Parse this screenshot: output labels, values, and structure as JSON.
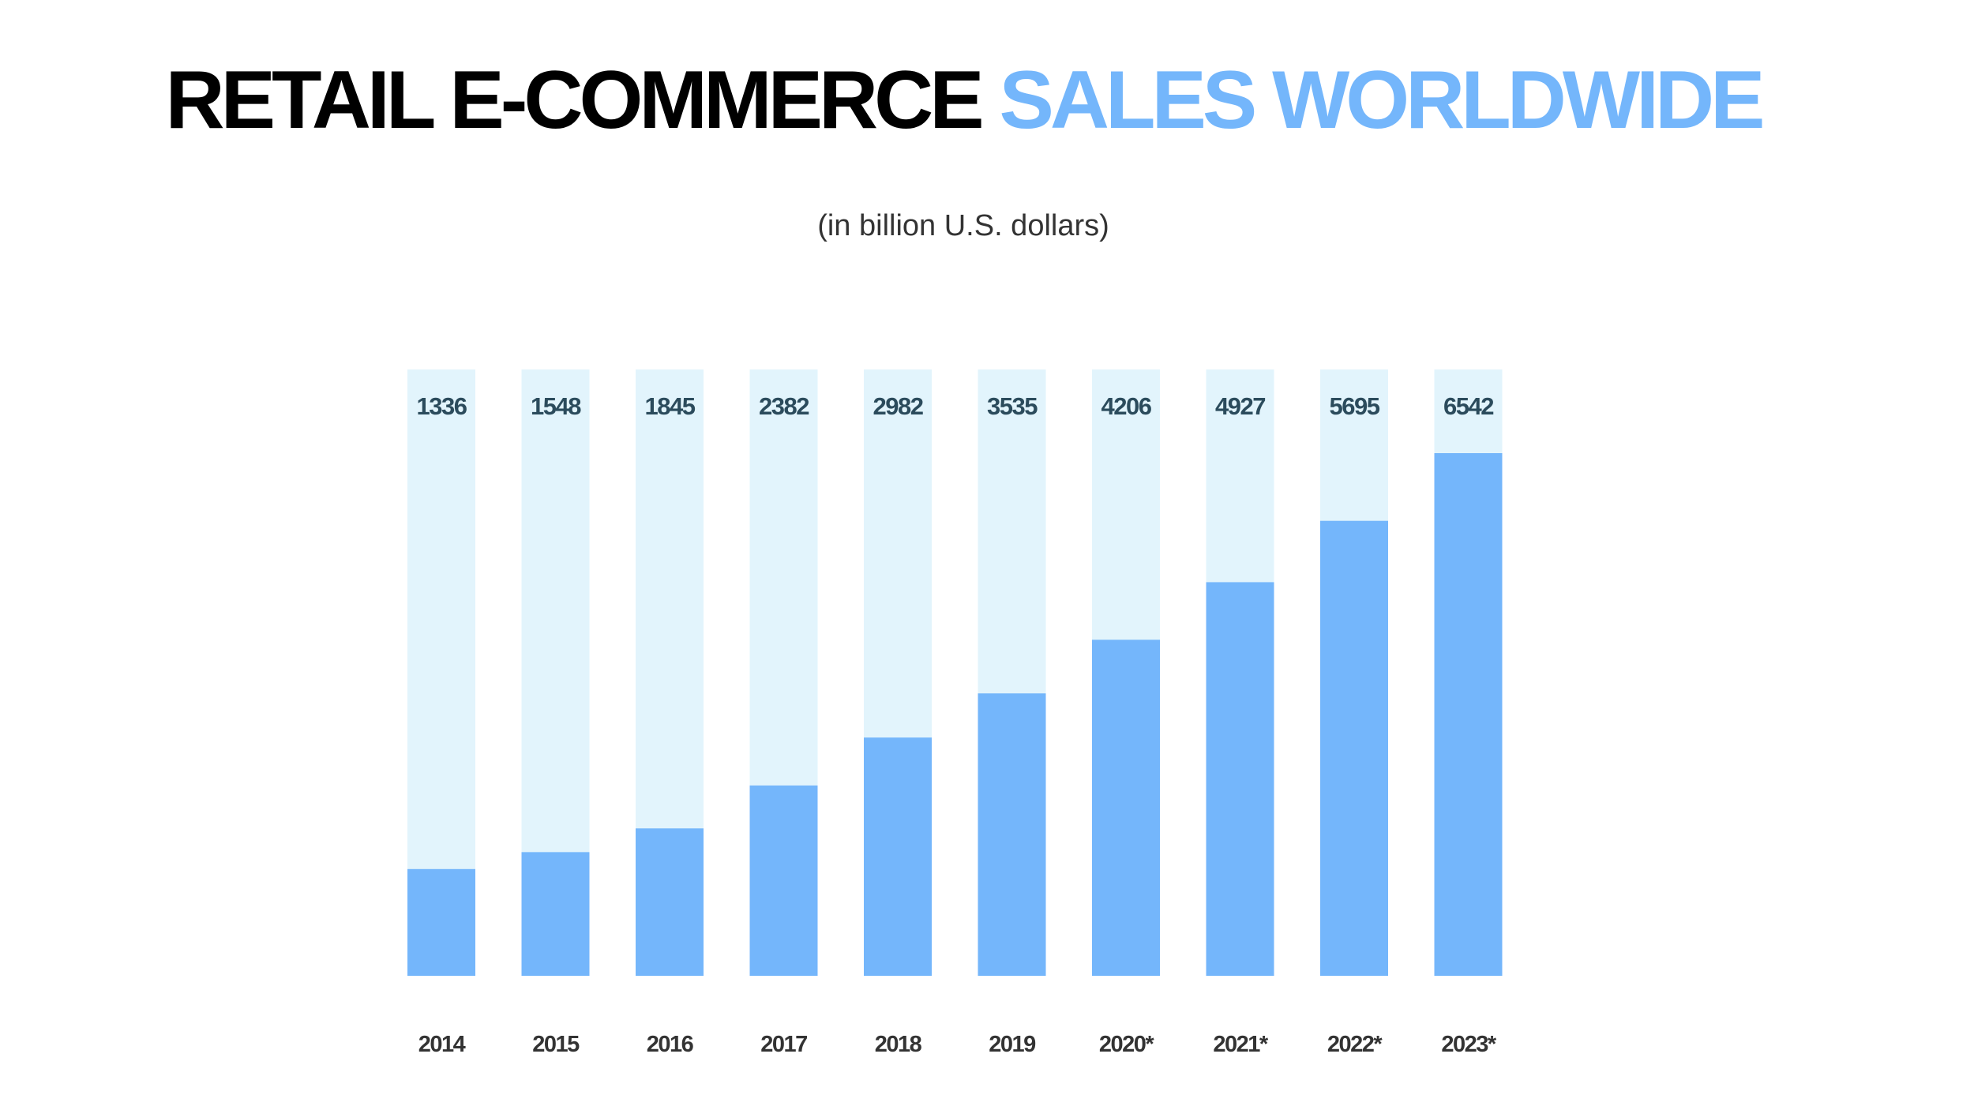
{
  "title": {
    "part1": "RETAIL E-COMMERCE ",
    "part2": "SALES WORLDWIDE"
  },
  "subtitle": "(in billion U.S. dollars)",
  "colors": {
    "title_dark": "#000000",
    "title_accent": "#74b6fb",
    "bar_track": "#e2f4fc",
    "bar_fill": "#74b6fb",
    "value_label": "#2b4b5c",
    "category_label": "#333333"
  },
  "chart_data": {
    "type": "bar",
    "title": "RETAIL E-COMMERCE SALES WORLDWIDE",
    "subtitle": "(in billion U.S. dollars)",
    "categories": [
      "2014",
      "2015",
      "2016",
      "2017",
      "2018",
      "2019",
      "2020*",
      "2021*",
      "2022*",
      "2023*"
    ],
    "values": [
      1336,
      1548,
      1845,
      2382,
      2982,
      3535,
      4206,
      4927,
      5695,
      6542
    ],
    "value_labels": [
      "1336",
      "1548",
      "1845",
      "2382",
      "2982",
      "3535",
      "4206",
      "4927",
      "5695",
      "6542"
    ],
    "background_track": true,
    "grid": false,
    "legend": "none"
  }
}
